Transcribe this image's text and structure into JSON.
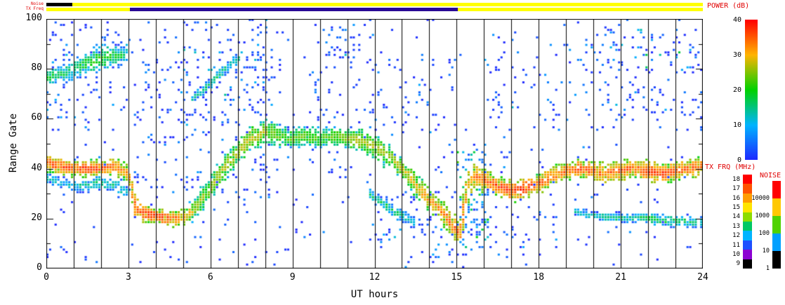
{
  "chart_data": {
    "type": "heatmap",
    "title": "",
    "xlabel": "UT hours",
    "ylabel": "Range Gate",
    "xlim": [
      0,
      24
    ],
    "ylim": [
      0,
      100
    ],
    "x_tick_labels": [
      0,
      3,
      6,
      9,
      12,
      15,
      18,
      21,
      24
    ],
    "x_gridline_step_hours": 1,
    "y_tick_labels": [
      0,
      20,
      40,
      60,
      80,
      100
    ],
    "seed": 1337,
    "power_colormap": [
      {
        "v": 0,
        "c": "#1e28ff"
      },
      {
        "v": 10,
        "c": "#00b4ff"
      },
      {
        "v": 20,
        "c": "#00d200"
      },
      {
        "v": 30,
        "c": "#ffb400"
      },
      {
        "v": 40,
        "c": "#ff0000"
      }
    ],
    "status_bars": [
      {
        "label": "Noise",
        "segments": [
          {
            "x0": 0,
            "x1": 0.95,
            "color": "#000000"
          },
          {
            "x0": 0.95,
            "x1": 24,
            "color": "#ffff00"
          }
        ]
      },
      {
        "label": "TX Freq",
        "segments": [
          {
            "x0": 0,
            "x1": 3.05,
            "color": "#ffff00"
          },
          {
            "x0": 3.05,
            "x1": 15.05,
            "color": "#2a0a96"
          },
          {
            "x0": 15.05,
            "x1": 24,
            "color": "#ffff00"
          }
        ]
      }
    ],
    "colorbars": {
      "power": {
        "title": "POWER (dB)",
        "min": 0,
        "max": 40,
        "ticks": [
          0,
          10,
          20,
          30,
          40
        ]
      },
      "tx_freq": {
        "title": "TX FRQ (MHz)",
        "labels": [
          "18",
          "17",
          "16",
          "15",
          "14",
          "13",
          "12",
          "11",
          "10",
          "9"
        ],
        "colors": [
          "#ff0000",
          "#ff5200",
          "#ff9c00",
          "#ffe400",
          "#8cdc00",
          "#00c864",
          "#00b4ff",
          "#1e50ff",
          "#8c00d2",
          "#000000"
        ]
      },
      "noise": {
        "title": "NOISE",
        "boundary_labels": [
          "10000",
          "1000",
          "100",
          "10",
          "1"
        ],
        "colors": [
          "#ff0000",
          "#ffc800",
          "#50d200",
          "#00a0ff",
          "#000000"
        ]
      }
    },
    "bands": [
      {
        "name": "main-echo-band",
        "step": 0.05,
        "pps": 9,
        "points": [
          [
            0,
            42,
            33,
            4
          ],
          [
            0.5,
            41,
            34,
            4
          ],
          [
            1,
            40,
            33,
            4
          ],
          [
            1.5,
            40,
            35,
            4
          ],
          [
            2,
            40,
            34,
            4
          ],
          [
            2.5,
            41,
            32,
            4
          ],
          [
            3,
            38,
            29,
            5
          ],
          [
            3.3,
            24,
            33,
            6
          ],
          [
            3.6,
            22,
            34,
            5
          ],
          [
            4,
            21,
            34,
            4
          ],
          [
            4.5,
            20,
            33,
            4
          ],
          [
            5,
            20,
            30,
            4
          ],
          [
            5.5,
            25,
            23,
            5
          ],
          [
            6,
            32,
            23,
            6
          ],
          [
            6.5,
            40,
            25,
            6
          ],
          [
            7,
            46,
            24,
            6
          ],
          [
            7.5,
            52,
            26,
            6
          ],
          [
            8,
            55,
            24,
            6
          ],
          [
            8.5,
            53,
            21,
            6
          ],
          [
            9,
            52,
            21,
            5
          ],
          [
            9.5,
            53,
            21,
            5
          ],
          [
            10,
            52,
            20,
            5
          ],
          [
            10.5,
            53,
            21,
            5
          ],
          [
            11,
            52,
            23,
            5
          ],
          [
            11.5,
            51,
            25,
            6
          ],
          [
            12,
            49,
            24,
            6
          ],
          [
            12.5,
            45,
            23,
            6
          ],
          [
            13,
            40,
            25,
            6
          ],
          [
            13.5,
            34,
            27,
            6
          ],
          [
            14,
            28,
            29,
            6
          ],
          [
            14.5,
            22,
            31,
            6
          ],
          [
            14.8,
            18,
            33,
            6
          ],
          [
            15.1,
            13,
            33,
            6
          ],
          [
            15.45,
            34,
            29,
            11
          ],
          [
            15.7,
            37,
            31,
            7
          ],
          [
            16,
            36,
            32,
            6
          ],
          [
            16.5,
            33,
            34,
            5
          ],
          [
            17,
            31,
            35,
            5
          ],
          [
            17.5,
            32,
            35,
            5
          ],
          [
            18,
            34,
            33,
            5
          ],
          [
            18.5,
            37,
            32,
            5
          ],
          [
            19,
            39,
            32,
            5
          ],
          [
            19.5,
            40,
            33,
            5
          ],
          [
            20,
            39,
            33,
            5
          ],
          [
            20.5,
            38,
            32,
            5
          ],
          [
            21,
            39,
            33,
            5
          ],
          [
            21.5,
            40,
            32,
            5
          ],
          [
            22,
            39,
            34,
            5
          ],
          [
            22.5,
            38,
            34,
            5
          ],
          [
            23,
            39,
            33,
            5
          ],
          [
            23.5,
            40,
            32,
            5
          ],
          [
            24,
            41,
            33,
            5
          ]
        ]
      },
      {
        "name": "upper-band-morning",
        "step": 0.05,
        "pps": 7,
        "points": [
          [
            0,
            76,
            17,
            4
          ],
          [
            0.5,
            78,
            15,
            5
          ],
          [
            1,
            80,
            14,
            6
          ],
          [
            1.5,
            82,
            17,
            7
          ],
          [
            2,
            84,
            19,
            7
          ],
          [
            2.5,
            85,
            17,
            6
          ],
          [
            3,
            86,
            13,
            6
          ]
        ]
      },
      {
        "name": "upper-diagonal-streak",
        "step": 0.05,
        "pps": 5,
        "points": [
          [
            5.4,
            68,
            12,
            3
          ],
          [
            6,
            74,
            13,
            3
          ],
          [
            6.6,
            80,
            13,
            3
          ],
          [
            7.1,
            85,
            12,
            3
          ]
        ]
      },
      {
        "name": "left-secondary-band",
        "step": 0.06,
        "pps": 4,
        "points": [
          [
            0,
            36,
            11,
            3
          ],
          [
            0.7,
            34,
            10,
            3
          ],
          [
            1.3,
            33,
            12,
            4
          ],
          [
            2,
            34,
            14,
            4
          ],
          [
            2.6,
            33,
            13,
            4
          ],
          [
            3,
            30,
            11,
            4
          ]
        ]
      },
      {
        "name": "midday-descending-streak",
        "step": 0.06,
        "pps": 5,
        "points": [
          [
            11.8,
            30,
            14,
            3
          ],
          [
            12.4,
            25,
            15,
            3
          ],
          [
            13,
            21,
            14,
            3
          ],
          [
            13.5,
            18,
            12,
            3
          ]
        ]
      },
      {
        "name": "evening-low-band",
        "step": 0.06,
        "pps": 5,
        "points": [
          [
            19.3,
            23,
            12,
            2
          ],
          [
            20,
            21,
            12,
            2
          ],
          [
            21,
            20,
            13,
            2
          ],
          [
            22,
            20,
            15,
            3
          ],
          [
            22.7,
            19,
            16,
            3
          ],
          [
            23.3,
            19,
            14,
            3
          ],
          [
            24,
            18,
            13,
            3
          ]
        ]
      }
    ],
    "speckle_regions": [
      {
        "x0": 0,
        "x1": 24,
        "g0": 0,
        "g1": 100,
        "d": 0.2,
        "p0": 0,
        "p1": 9
      },
      {
        "x0": 0,
        "x1": 3,
        "g0": 55,
        "g1": 100,
        "d": 0.45,
        "p0": 0,
        "p1": 14
      },
      {
        "x0": 0,
        "x1": 0.8,
        "g0": 60,
        "g1": 92,
        "d": 0.8,
        "p0": 0,
        "p1": 16
      },
      {
        "x0": 3.2,
        "x1": 5.2,
        "g0": 50,
        "g1": 100,
        "d": 0.6,
        "p0": 0,
        "p1": 12
      },
      {
        "x0": 5,
        "x1": 8.6,
        "g0": 58,
        "g1": 100,
        "d": 0.7,
        "p0": 0,
        "p1": 15
      },
      {
        "x0": 7.2,
        "x1": 8.2,
        "g0": 28,
        "g1": 100,
        "d": 0.9,
        "p0": 0,
        "p1": 13
      },
      {
        "x0": 9.6,
        "x1": 12.2,
        "g0": 55,
        "g1": 98,
        "d": 0.5,
        "p0": 0,
        "p1": 13
      },
      {
        "x0": 10.3,
        "x1": 11.3,
        "g0": 80,
        "g1": 100,
        "d": 0.9,
        "p0": 0,
        "p1": 16
      },
      {
        "x0": 12,
        "x1": 15,
        "g0": 2,
        "g1": 32,
        "d": 0.7,
        "p0": 0,
        "p1": 15
      },
      {
        "x0": 12,
        "x1": 15.2,
        "g0": 55,
        "g1": 90,
        "d": 0.35,
        "p0": 0,
        "p1": 12
      },
      {
        "x0": 15,
        "x1": 16.2,
        "g0": 8,
        "g1": 50,
        "d": 2.0,
        "p0": 4,
        "p1": 26
      },
      {
        "x0": 5.2,
        "x1": 7.2,
        "g0": 30,
        "g1": 55,
        "d": 0.45,
        "p0": 0,
        "p1": 14
      },
      {
        "x0": 8.6,
        "x1": 9.6,
        "g0": 40,
        "g1": 62,
        "d": 0.25,
        "p0": 0,
        "p1": 10
      },
      {
        "x0": 15.5,
        "x1": 19,
        "g0": 8,
        "g1": 30,
        "d": 0.4,
        "p0": 0,
        "p1": 12
      },
      {
        "x0": 16,
        "x1": 24,
        "g0": 55,
        "g1": 95,
        "d": 0.4,
        "p0": 0,
        "p1": 13
      },
      {
        "x0": 20.5,
        "x1": 24,
        "g0": 78,
        "g1": 96,
        "d": 0.8,
        "p0": 0,
        "p1": 20
      },
      {
        "x0": 19,
        "x1": 24,
        "g0": 60,
        "g1": 75,
        "d": 0.25,
        "p0": 0,
        "p1": 10
      },
      {
        "x0": 3.2,
        "x1": 5.2,
        "g0": 28,
        "g1": 45,
        "d": 0.5,
        "p0": 0,
        "p1": 12
      }
    ]
  }
}
